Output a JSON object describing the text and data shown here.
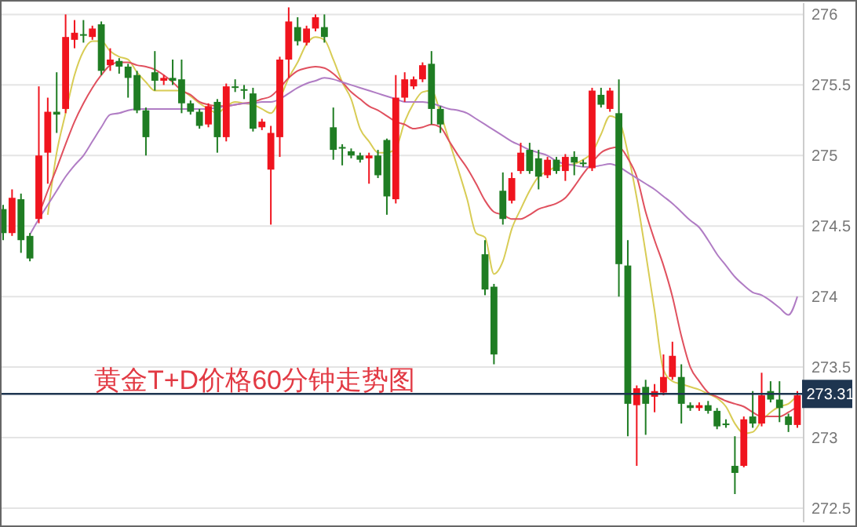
{
  "chart_data": {
    "type": "candlestick",
    "title": "黄金T+D价格60分钟走势图",
    "categories": [
      null,
      null,
      null,
      null,
      null,
      null,
      null,
      null,
      null,
      null,
      null,
      null,
      null,
      null,
      null,
      null,
      null,
      null,
      null,
      null,
      null,
      null,
      null,
      null,
      null,
      null,
      null,
      null,
      null,
      null,
      null,
      null,
      null,
      null,
      null,
      null,
      null,
      null,
      null,
      null,
      null,
      null,
      null,
      null,
      null,
      null,
      null,
      null,
      null,
      null,
      null,
      null,
      null,
      null,
      null,
      null,
      null,
      null,
      null,
      null,
      null,
      null,
      null,
      null,
      null,
      null,
      null,
      null,
      null,
      null,
      null,
      null,
      null,
      null,
      null,
      null,
      null,
      null,
      null,
      null,
      null,
      null,
      null,
      null,
      null,
      null,
      null,
      null,
      null,
      null
    ],
    "ohlc": [
      [
        274.62,
        274.65,
        274.4,
        274.45
      ],
      [
        274.45,
        274.76,
        274.43,
        274.7
      ],
      [
        274.69,
        274.73,
        274.31,
        274.4
      ],
      [
        274.43,
        274.45,
        274.25,
        274.27
      ],
      [
        274.55,
        275.49,
        274.52,
        275.0
      ],
      [
        275.02,
        275.41,
        274.8,
        275.31
      ],
      [
        275.31,
        275.59,
        275.16,
        275.29
      ],
      [
        275.33,
        276.0,
        275.3,
        275.84
      ],
      [
        275.82,
        275.96,
        275.76,
        275.87
      ],
      [
        275.86,
        275.96,
        275.8,
        275.85
      ],
      [
        275.84,
        275.92,
        275.82,
        275.9
      ],
      [
        275.93,
        275.95,
        275.57,
        275.6
      ],
      [
        275.64,
        275.76,
        275.6,
        275.68
      ],
      [
        275.67,
        275.69,
        275.58,
        275.63
      ],
      [
        275.63,
        275.65,
        275.41,
        275.55
      ],
      [
        275.57,
        275.6,
        275.3,
        275.32
      ],
      [
        275.32,
        275.34,
        275.0,
        275.13
      ],
      [
        275.59,
        275.74,
        275.46,
        275.53
      ],
      [
        275.53,
        275.57,
        275.5,
        275.55
      ],
      [
        275.55,
        275.68,
        275.5,
        275.53
      ],
      [
        275.54,
        275.68,
        275.3,
        275.37
      ],
      [
        275.37,
        275.39,
        275.29,
        275.31
      ],
      [
        275.31,
        275.33,
        275.19,
        275.21
      ],
      [
        275.22,
        275.37,
        275.2,
        275.35
      ],
      [
        275.38,
        275.4,
        275.02,
        275.13
      ],
      [
        275.13,
        275.51,
        275.1,
        275.49
      ],
      [
        275.49,
        275.54,
        275.45,
        275.48
      ],
      [
        275.47,
        275.5,
        275.4,
        275.46
      ],
      [
        275.44,
        275.48,
        275.17,
        275.19
      ],
      [
        275.2,
        275.26,
        275.18,
        275.24
      ],
      [
        274.9,
        275.21,
        274.51,
        275.16
      ],
      [
        275.13,
        275.7,
        274.99,
        275.68
      ],
      [
        275.68,
        276.05,
        275.55,
        275.95
      ],
      [
        275.91,
        275.98,
        275.78,
        275.81
      ],
      [
        275.8,
        275.92,
        275.78,
        275.9
      ],
      [
        275.9,
        276.0,
        275.88,
        275.98
      ],
      [
        275.91,
        276.0,
        275.8,
        275.84
      ],
      [
        275.2,
        275.34,
        274.97,
        275.04
      ],
      [
        275.06,
        275.08,
        274.93,
        275.05
      ],
      [
        275.03,
        275.05,
        274.98,
        275.0
      ],
      [
        275.0,
        275.02,
        274.95,
        274.97
      ],
      [
        274.98,
        275.02,
        274.8,
        275.0
      ],
      [
        275.0,
        275.04,
        274.84,
        274.86
      ],
      [
        275.11,
        275.12,
        274.58,
        274.71
      ],
      [
        274.69,
        275.57,
        274.66,
        275.41
      ],
      [
        275.41,
        275.59,
        275.38,
        275.54
      ],
      [
        275.49,
        275.56,
        275.47,
        275.54
      ],
      [
        275.54,
        275.66,
        275.52,
        275.64
      ],
      [
        275.65,
        275.74,
        275.22,
        275.33
      ],
      [
        275.33,
        275.35,
        275.16,
        275.22
      ],
      null,
      null,
      null,
      null,
      [
        274.3,
        274.4,
        274.01,
        274.05
      ],
      [
        274.07,
        274.09,
        273.52,
        273.59
      ],
      [
        274.75,
        274.88,
        274.51,
        274.55
      ],
      [
        274.68,
        274.88,
        274.66,
        274.84
      ],
      [
        274.89,
        275.09,
        274.87,
        275.02
      ],
      [
        275.04,
        275.09,
        274.87,
        274.89
      ],
      [
        274.98,
        275.04,
        274.76,
        274.85
      ],
      [
        274.86,
        274.99,
        274.84,
        274.97
      ],
      [
        274.97,
        274.99,
        274.87,
        274.89
      ],
      [
        274.89,
        275.01,
        274.82,
        274.99
      ],
      [
        274.99,
        275.03,
        274.86,
        274.95
      ],
      [
        274.95,
        274.97,
        274.92,
        274.94
      ],
      [
        274.91,
        275.48,
        274.89,
        275.46
      ],
      [
        275.43,
        275.48,
        275.34,
        275.36
      ],
      [
        275.33,
        275.48,
        275.31,
        275.46
      ],
      [
        275.3,
        275.54,
        274.0,
        274.23
      ],
      [
        274.22,
        274.4,
        273.01,
        273.24
      ],
      [
        273.23,
        273.37,
        272.8,
        273.35
      ],
      [
        273.36,
        273.41,
        273.02,
        273.24
      ],
      [
        273.29,
        273.38,
        273.18,
        273.33
      ],
      [
        273.32,
        273.59,
        273.3,
        273.43
      ],
      [
        273.43,
        273.68,
        273.41,
        273.58
      ],
      [
        273.43,
        273.52,
        273.1,
        273.24
      ],
      [
        273.23,
        273.25,
        273.19,
        273.21
      ],
      [
        273.21,
        273.25,
        273.19,
        273.23
      ],
      [
        273.23,
        273.26,
        273.17,
        273.19
      ],
      [
        273.19,
        273.21,
        273.06,
        273.08
      ],
      [
        273.1,
        273.13,
        273.07,
        273.1
      ],
      [
        272.8,
        273.01,
        272.6,
        272.75
      ],
      [
        272.8,
        273.15,
        272.79,
        273.13
      ],
      [
        273.15,
        273.33,
        273.07,
        273.1
      ],
      [
        273.1,
        273.46,
        273.08,
        273.3
      ],
      [
        273.33,
        273.4,
        273.25,
        273.27
      ],
      [
        273.27,
        273.4,
        273.11,
        273.21
      ],
      [
        273.15,
        273.17,
        273.04,
        273.09
      ],
      [
        273.09,
        273.33,
        273.07,
        273.3
      ]
    ],
    "colors": [
      "#1f7d23",
      "#f0141e",
      "#1f7d23",
      "#1f7d23",
      "#f0141e",
      "#f0141e",
      "#1f7d23",
      "#f0141e",
      "#f0141e",
      "#1f7d23",
      "#f0141e",
      "#1f7d23",
      "#f0141e",
      "#1f7d23",
      "#1f7d23",
      "#1f7d23",
      "#1f7d23",
      "#1f7d23",
      "#f0141e",
      "#1f7d23",
      "#1f7d23",
      "#1f7d23",
      "#1f7d23",
      "#f0141e",
      "#1f7d23",
      "#f0141e",
      "#1f7d23",
      "#1f7d23",
      "#1f7d23",
      "#f0141e",
      "#f0141e",
      "#f0141e",
      "#f0141e",
      "#1f7d23",
      "#f0141e",
      "#f0141e",
      "#1f7d23",
      "#1f7d23",
      "#1f7d23",
      "#1f7d23",
      "#1f7d23",
      "#f0141e",
      "#1f7d23",
      "#1f7d23",
      "#f0141e",
      "#f0141e",
      "#f0141e",
      "#f0141e",
      "#1f7d23",
      "#1f7d23",
      null,
      null,
      null,
      null,
      "#1f7d23",
      "#1f7d23",
      "#1f7d23",
      "#f0141e",
      "#f0141e",
      "#1f7d23",
      "#1f7d23",
      "#f0141e",
      "#1f7d23",
      "#f0141e",
      "#1f7d23",
      "#1f7d23",
      "#f0141e",
      "#1f7d23",
      "#f0141e",
      "#1f7d23",
      "#1f7d23",
      "#f0141e",
      "#1f7d23",
      "#f0141e",
      "#f0141e",
      "#f0141e",
      "#1f7d23",
      "#1f7d23",
      "#f0141e",
      "#1f7d23",
      "#1f7d23",
      "#1f7d23",
      "#1f7d23",
      "#f0141e",
      "#1f7d23",
      "#f0141e",
      "#1f7d23",
      "#1f7d23",
      "#1f7d23",
      "#f0141e"
    ],
    "series": [
      {
        "type": "line",
        "color": "#d8cc55",
        "values": [
          null,
          null,
          null,
          null,
          null,
          274.58,
          275.02,
          275.3,
          275.57,
          275.74,
          275.81,
          275.81,
          275.74,
          275.7,
          275.68,
          275.59,
          275.52,
          275.46,
          275.46,
          275.46,
          275.46,
          275.42,
          275.37,
          275.33,
          275.3,
          275.35,
          275.38,
          275.37,
          275.36,
          275.33,
          275.3,
          275.4,
          275.55,
          275.66,
          275.79,
          275.84,
          275.82,
          275.68,
          275.52,
          275.4,
          275.19,
          275.1,
          275.02,
          275.02,
          275.05,
          275.24,
          275.37,
          275.45,
          275.46,
          275.3,
          275.1,
          274.9,
          274.69,
          274.45,
          274.42,
          274.16,
          274.25,
          274.48,
          274.62,
          274.75,
          274.85,
          274.89,
          274.92,
          274.93,
          274.94,
          274.97,
          275.02,
          275.15,
          275.28,
          275.25,
          275.02,
          274.7,
          274.31,
          273.9,
          273.48,
          273.4,
          273.38,
          273.36,
          273.34,
          273.31,
          273.28,
          273.22,
          273.1,
          273.03,
          273.04,
          273.12,
          273.18,
          273.22,
          273.24,
          273.3
        ]
      },
      {
        "type": "line",
        "color": "#e0505e",
        "values": [
          null,
          null,
          null,
          null,
          274.58,
          274.75,
          274.91,
          275.08,
          275.24,
          275.37,
          275.48,
          275.57,
          275.64,
          275.66,
          275.66,
          275.64,
          275.63,
          275.61,
          275.57,
          275.52,
          275.46,
          275.43,
          275.38,
          275.36,
          275.35,
          275.35,
          275.36,
          275.37,
          275.38,
          275.4,
          275.42,
          275.48,
          275.55,
          275.6,
          275.62,
          275.63,
          275.62,
          275.58,
          275.52,
          275.45,
          275.4,
          275.35,
          275.32,
          275.28,
          275.24,
          275.22,
          275.19,
          275.2,
          275.22,
          275.2,
          275.1,
          275.0,
          274.91,
          274.8,
          274.68,
          274.6,
          274.58,
          274.55,
          274.55,
          274.58,
          274.62,
          274.64,
          274.66,
          274.7,
          274.78,
          274.87,
          274.95,
          275.02,
          275.05,
          275.06,
          274.98,
          274.85,
          274.6,
          274.4,
          274.22,
          274.0,
          273.72,
          273.5,
          273.4,
          273.32,
          273.29,
          273.26,
          273.24,
          273.22,
          273.18,
          273.15,
          273.15,
          273.15,
          273.18,
          273.22
        ]
      },
      {
        "type": "line",
        "color": "#b07cc4",
        "values": [
          null,
          null,
          null,
          274.44,
          274.55,
          274.65,
          274.75,
          274.85,
          274.93,
          275.0,
          275.1,
          275.2,
          275.29,
          275.3,
          275.32,
          275.33,
          275.33,
          275.33,
          275.33,
          275.33,
          275.33,
          275.33,
          275.33,
          275.33,
          275.34,
          275.35,
          275.36,
          275.37,
          275.37,
          275.38,
          275.38,
          275.4,
          275.44,
          275.48,
          275.51,
          275.53,
          275.55,
          275.54,
          275.52,
          275.5,
          275.48,
          275.46,
          275.44,
          275.42,
          275.4,
          275.38,
          275.38,
          275.38,
          275.37,
          275.35,
          275.33,
          275.32,
          275.3,
          275.26,
          275.22,
          275.18,
          275.14,
          275.1,
          275.07,
          275.04,
          275.02,
          275.0,
          274.96,
          274.94,
          274.93,
          274.92,
          274.92,
          274.93,
          274.94,
          274.92,
          274.88,
          274.84,
          274.8,
          274.76,
          274.71,
          274.66,
          274.6,
          274.54,
          274.49,
          274.4,
          274.3,
          274.22,
          274.14,
          274.08,
          274.03,
          274.01,
          273.97,
          273.92,
          273.87,
          274.0
        ]
      }
    ],
    "ylim": [
      272.4,
      276.08
    ],
    "yticks": [
      272.5,
      273,
      273.5,
      274,
      274.5,
      275,
      275.5,
      276
    ],
    "grid": "y",
    "ref_lines": [
      {
        "axis": "y",
        "value": 273.31,
        "label": "273.31",
        "color": "#1e3550"
      }
    ]
  }
}
